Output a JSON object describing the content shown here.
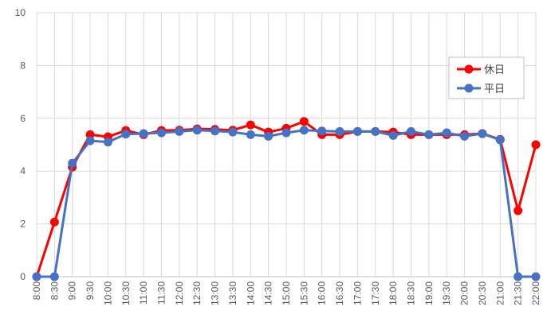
{
  "chart_data": {
    "type": "line",
    "title": "",
    "xlabel": "",
    "ylabel": "",
    "ylim": [
      0,
      10
    ],
    "yticks": [
      0,
      2,
      4,
      6,
      8,
      10
    ],
    "grid": "vertical and horizontal gridlines",
    "legend_position": "right",
    "categories": [
      "8:00",
      "8:30",
      "9:00",
      "9:30",
      "10:00",
      "10:30",
      "11:00",
      "11:30",
      "12:00",
      "12:30",
      "13:00",
      "13:30",
      "14:00",
      "14:30",
      "15:00",
      "15:30",
      "16:00",
      "16:30",
      "17:00",
      "17:30",
      "18:00",
      "18:30",
      "19:00",
      "19:30",
      "20:00",
      "20:30",
      "21:00",
      "21:30",
      "22:00"
    ],
    "series": [
      {
        "name": "休日",
        "color": "#ff0000",
        "values": [
          0,
          2.07,
          4.15,
          5.38,
          5.3,
          5.54,
          5.38,
          5.54,
          5.55,
          5.6,
          5.58,
          5.55,
          5.75,
          5.48,
          5.62,
          5.88,
          5.38,
          5.38,
          5.5,
          5.5,
          5.48,
          5.38,
          5.38,
          5.38,
          5.38,
          5.42,
          5.2,
          2.5,
          5.0
        ]
      },
      {
        "name": "平日",
        "color": "#4472c4",
        "values": [
          0,
          0,
          4.3,
          5.15,
          5.1,
          5.4,
          5.42,
          5.45,
          5.5,
          5.55,
          5.52,
          5.48,
          5.38,
          5.32,
          5.45,
          5.55,
          5.52,
          5.5,
          5.5,
          5.5,
          5.35,
          5.5,
          5.38,
          5.45,
          5.32,
          5.42,
          5.18,
          0,
          0
        ]
      }
    ]
  }
}
